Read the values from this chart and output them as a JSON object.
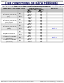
{
  "page_header_left": "Page 52",
  "page_header_right": "CHAPTER 1  GENERAL INFORMATION",
  "section_title": "LINE CONDITIONS OF EACH TERMINAL",
  "desc_line1": "The cable length between the DLC card and terminal varies depending on the type of terminal.",
  "desc_line2": "This table shows the line conditions of each Dterm, DSS/BLF Console, and Attendant Console.",
  "table_title": "Table 1-6  Line Conditions of Each Terminal",
  "col_headers": [
    "TERMINAL TYPE",
    "CARD TYPE",
    "CABLE LENGTH*\n(Cable 0.5φ/24 AWG)",
    "REMARKS"
  ],
  "rows": [
    {
      "terminal": "Dterm75 (Series E)\n(8DN)",
      "card": "DLC",
      "max": "1000m\n3281ft",
      "min": "10m\n33ft",
      "remark": "",
      "remark_color": null,
      "group_start": true
    },
    {
      "terminal": "",
      "card": "DHLC",
      "max": "1000m\n3281ft",
      "min": "10m\n33ft",
      "remark": "",
      "remark_color": null,
      "group_start": false
    },
    {
      "terminal": "Dterm75 (Series E)\n(8DN) w/CA",
      "card": "DLC",
      "max": "700m\n2297ft",
      "min": "10m\n33ft",
      "remark": "",
      "remark_color": null,
      "group_start": true
    },
    {
      "terminal": "",
      "card": "DHLC",
      "max": "700m\n2297ft",
      "min": "10m\n33ft",
      "remark": "",
      "remark_color": null,
      "group_start": false
    },
    {
      "terminal": "Dterm75 (Series E)\n(16DN)",
      "card": "DLC",
      "max": "1000m\n3281ft",
      "min": "10m\n33ft",
      "remark": "",
      "remark_color": null,
      "group_start": true
    },
    {
      "terminal": "",
      "card": "DHLC",
      "max": "1000m\n3281ft",
      "min": "10m\n33ft",
      "remark": "Note 1",
      "remark_color": "#0000cc",
      "group_start": false
    },
    {
      "terminal": "DSS/BLF Console",
      "card": "DLC",
      "max": "100m\n328ft",
      "min": "10m\n33ft",
      "remark": "",
      "remark_color": null,
      "group_start": true
    },
    {
      "terminal": "",
      "card": "DHLC",
      "max": "100m\n328ft",
      "min": "10m\n33ft",
      "remark": "",
      "remark_color": null,
      "group_start": false
    },
    {
      "terminal": "Attendant Console\n(Model 1)",
      "card": "DAC",
      "max": "1000m\n3281ft",
      "min": "10m\n33ft",
      "remark": "Note 2",
      "remark_color": "#0000cc",
      "group_start": true
    },
    {
      "terminal": "Attendant Console\n(Model 2)",
      "card": "DAC",
      "max": "1000m\n3281ft",
      "min": "10m\n33ft",
      "remark": "",
      "remark_color": null,
      "group_start": true
    }
  ],
  "row_groups": [
    [
      0,
      1
    ],
    [
      2,
      3
    ],
    [
      4,
      5
    ],
    [
      6,
      7
    ],
    [
      8
    ],
    [
      9
    ]
  ],
  "footer_left": "NEAX2000 IVS2 Installation Procedure Manual",
  "footer_right": "Page 26  ND-70928 (E), Issue 1.0",
  "bg_color": "#ffffff",
  "header_bg": "#d0d0d0",
  "row_bg_odd": "#e8e8e8",
  "row_bg_even": "#ffffff",
  "table_line_color": "#aaaaaa",
  "text_color": "#111111",
  "title_color": "#000055"
}
